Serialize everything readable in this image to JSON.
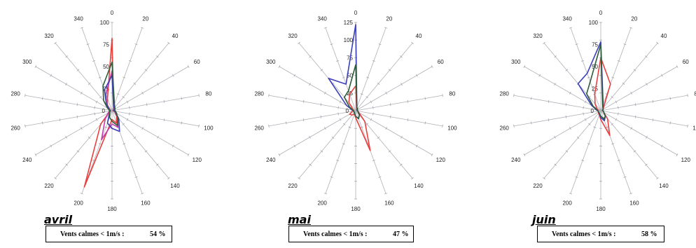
{
  "chart_data": [
    {
      "type": "radar",
      "title": "avril",
      "angular_ticks": [
        "0",
        "20",
        "40",
        "60",
        "80",
        "100",
        "120",
        "140",
        "160",
        "180",
        "200",
        "220",
        "240",
        "260",
        "280",
        "300",
        "320",
        "340"
      ],
      "radial_ticks": [
        "0",
        "25",
        "50",
        "75",
        "100"
      ],
      "rlim": [
        0,
        100
      ],
      "series": [
        {
          "color": "#e8403f",
          "values": [
            82,
            5,
            3,
            2,
            1,
            2,
            4,
            8,
            15,
            10,
            92,
            20,
            4,
            2,
            2,
            3,
            8,
            15
          ]
        },
        {
          "color": "#c03da8",
          "values": [
            45,
            6,
            4,
            3,
            2,
            3,
            5,
            10,
            20,
            15,
            35,
            12,
            5,
            3,
            3,
            5,
            10,
            20
          ]
        },
        {
          "color": "#3c3fb6",
          "values": [
            40,
            5,
            4,
            3,
            2,
            3,
            5,
            12,
            25,
            20,
            15,
            5,
            3,
            2,
            2,
            4,
            10,
            25
          ]
        },
        {
          "color": "#2f5c3a",
          "values": [
            55,
            8,
            5,
            4,
            3,
            4,
            6,
            10,
            18,
            12,
            8,
            4,
            3,
            3,
            3,
            6,
            15,
            30
          ]
        }
      ],
      "calm_label": "Vents calmes < 1m/s :",
      "calm_value": "54 %"
    },
    {
      "type": "radar",
      "title": "mai",
      "angular_ticks": [
        "0",
        "20",
        "40",
        "60",
        "80",
        "100",
        "120",
        "140",
        "160",
        "180",
        "200",
        "220",
        "240",
        "260",
        "280",
        "300",
        "320",
        "340"
      ],
      "radial_ticks": [
        "0",
        "25",
        "50",
        "75",
        "100",
        "125"
      ],
      "rlim": [
        0,
        125
      ],
      "series": [
        {
          "color": "#e8403f",
          "values": [
            35,
            4,
            3,
            2,
            2,
            3,
            5,
            20,
            60,
            10,
            5,
            8,
            10,
            5,
            3,
            5,
            15,
            25
          ]
        },
        {
          "color": "#3c3fb6",
          "values": [
            122,
            5,
            3,
            2,
            2,
            3,
            4,
            8,
            12,
            8,
            4,
            3,
            3,
            3,
            5,
            15,
            60,
            40
          ]
        },
        {
          "color": "#2f5c3a",
          "values": [
            65,
            5,
            4,
            3,
            2,
            3,
            4,
            8,
            12,
            8,
            4,
            3,
            3,
            3,
            4,
            10,
            25,
            30
          ]
        }
      ],
      "calm_label": "Vents calmes < 1m/s :",
      "calm_value": "47 %"
    },
    {
      "type": "radar",
      "title": "juin",
      "angular_ticks": [
        "0",
        "20",
        "40",
        "60",
        "80",
        "100",
        "120",
        "140",
        "160",
        "180",
        "200",
        "220",
        "240",
        "260",
        "280",
        "300",
        "320",
        "340"
      ],
      "radial_ticks": [
        "0",
        "25",
        "50",
        "75",
        "100"
      ],
      "rlim": [
        0,
        100
      ],
      "series": [
        {
          "color": "#e8403f",
          "values": [
            60,
            32,
            5,
            3,
            2,
            3,
            4,
            12,
            30,
            10,
            5,
            4,
            3,
            3,
            3,
            5,
            10,
            20
          ]
        },
        {
          "color": "#3c3fb6",
          "values": [
            78,
            8,
            4,
            3,
            2,
            3,
            4,
            8,
            12,
            8,
            4,
            3,
            3,
            3,
            5,
            12,
            40,
            45
          ]
        },
        {
          "color": "#2f5c3a",
          "values": [
            75,
            6,
            4,
            3,
            2,
            3,
            4,
            8,
            10,
            6,
            4,
            3,
            3,
            3,
            4,
            10,
            25,
            35
          ]
        }
      ],
      "calm_label": "Vents calmes < 1m/s :",
      "calm_value": "58 %"
    }
  ]
}
